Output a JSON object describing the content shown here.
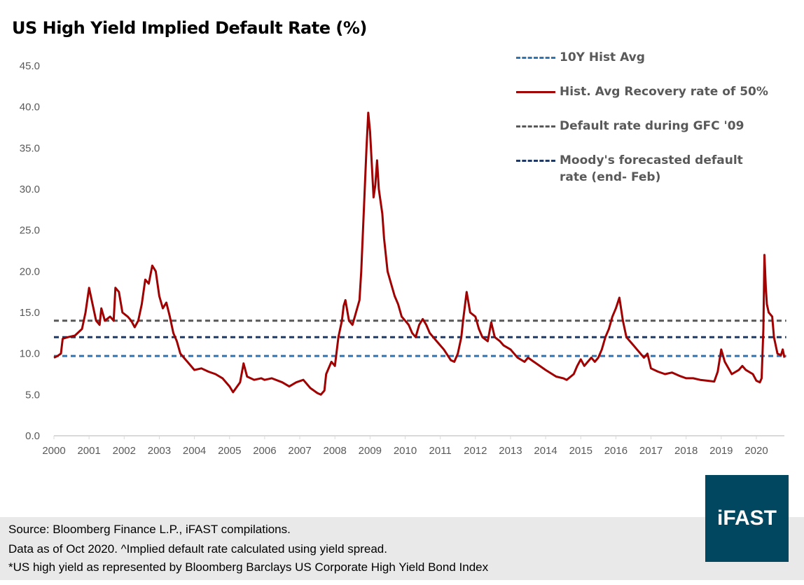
{
  "chart_data": {
    "type": "line",
    "title": "US High Yield Implied Default Rate (%)",
    "xlabel": "",
    "ylabel": "",
    "ylim": [
      0,
      45
    ],
    "xlim": [
      2000,
      2020.85
    ],
    "y_ticks": [
      "0.0",
      "5.0",
      "10.0",
      "15.0",
      "20.0",
      "25.0",
      "30.0",
      "35.0",
      "40.0",
      "45.0"
    ],
    "x_ticks": [
      "2000",
      "2001",
      "2002",
      "2003",
      "2004",
      "2005",
      "2006",
      "2007",
      "2008",
      "2009",
      "2010",
      "2011",
      "2012",
      "2013",
      "2014",
      "2015",
      "2016",
      "2017",
      "2018",
      "2019",
      "2020"
    ],
    "grid": false,
    "legend_placement": "top-right",
    "series": [
      {
        "name": "Hist. Avg Recovery rate of 50%",
        "color": "#a00000",
        "style": "solid",
        "x": [
          2000.0,
          2000.1,
          2000.2,
          2000.25,
          2000.4,
          2000.6,
          2000.8,
          2000.9,
          2001.0,
          2001.1,
          2001.2,
          2001.3,
          2001.35,
          2001.45,
          2001.6,
          2001.7,
          2001.75,
          2001.85,
          2001.95,
          2002.1,
          2002.2,
          2002.3,
          2002.4,
          2002.5,
          2002.6,
          2002.7,
          2002.8,
          2002.9,
          2003.0,
          2003.1,
          2003.2,
          2003.3,
          2003.4,
          2003.5,
          2003.6,
          2003.8,
          2004.0,
          2004.2,
          2004.4,
          2004.6,
          2004.8,
          2005.0,
          2005.1,
          2005.3,
          2005.4,
          2005.5,
          2005.7,
          2005.9,
          2006.0,
          2006.2,
          2006.5,
          2006.7,
          2006.9,
          2007.1,
          2007.3,
          2007.5,
          2007.6,
          2007.7,
          2007.75,
          2007.9,
          2008.0,
          2008.1,
          2008.2,
          2008.25,
          2008.3,
          2008.4,
          2008.5,
          2008.6,
          2008.7,
          2008.75,
          2008.8,
          2008.85,
          2008.9,
          2008.95,
          2009.0,
          2009.05,
          2009.1,
          2009.15,
          2009.2,
          2009.25,
          2009.35,
          2009.4,
          2009.5,
          2009.6,
          2009.7,
          2009.8,
          2009.9,
          2010.0,
          2010.1,
          2010.2,
          2010.3,
          2010.4,
          2010.5,
          2010.6,
          2010.7,
          2010.9,
          2011.1,
          2011.3,
          2011.4,
          2011.5,
          2011.6,
          2011.65,
          2011.75,
          2011.85,
          2012.0,
          2012.1,
          2012.2,
          2012.35,
          2012.45,
          2012.55,
          2012.7,
          2012.8,
          2013.0,
          2013.2,
          2013.4,
          2013.5,
          2013.6,
          2013.8,
          2014.0,
          2014.3,
          2014.5,
          2014.6,
          2014.8,
          2014.9,
          2015.0,
          2015.1,
          2015.2,
          2015.3,
          2015.4,
          2015.5,
          2015.6,
          2015.7,
          2015.8,
          2015.9,
          2016.0,
          2016.1,
          2016.2,
          2016.3,
          2016.4,
          2016.5,
          2016.6,
          2016.8,
          2016.9,
          2017.0,
          2017.2,
          2017.4,
          2017.6,
          2017.8,
          2018.0,
          2018.2,
          2018.4,
          2018.6,
          2018.8,
          2018.9,
          2019.0,
          2019.1,
          2019.3,
          2019.5,
          2019.6,
          2019.7,
          2019.9,
          2020.0,
          2020.1,
          2020.15,
          2020.2,
          2020.23,
          2020.27,
          2020.3,
          2020.35,
          2020.45,
          2020.5,
          2020.55,
          2020.6,
          2020.7,
          2020.75,
          2020.8
        ],
        "values": [
          9.5,
          9.7,
          10,
          11.8,
          12,
          12.2,
          13,
          15,
          18,
          16,
          14,
          13.5,
          15.5,
          14,
          14.5,
          14,
          18,
          17.5,
          15,
          14.5,
          14,
          13.2,
          14,
          16,
          19,
          18.5,
          20.7,
          20,
          17,
          15.5,
          16.2,
          14.5,
          12.5,
          11.5,
          10,
          9,
          8,
          8.2,
          7.8,
          7.5,
          7,
          6,
          5.3,
          6.5,
          8.8,
          7.2,
          6.8,
          7,
          6.8,
          7,
          6.5,
          6,
          6.5,
          6.8,
          5.8,
          5.2,
          5.0,
          5.5,
          7.5,
          9,
          8.5,
          12,
          14,
          15.8,
          16.5,
          14,
          13.5,
          15,
          16.5,
          20,
          25,
          30,
          35,
          39.3,
          37,
          33,
          29,
          30.5,
          33.5,
          30,
          27,
          24,
          20,
          18.5,
          17,
          16,
          14.5,
          14,
          13.5,
          12.5,
          12,
          13.5,
          14.2,
          13.5,
          12.5,
          11.5,
          10.5,
          9.2,
          9,
          10,
          12,
          14,
          17.5,
          15,
          14.5,
          13,
          12,
          11.5,
          13.8,
          12,
          11.5,
          11,
          10.5,
          9.5,
          9,
          9.5,
          9.2,
          8.6,
          8,
          7.2,
          7,
          6.8,
          7.5,
          8.5,
          9.3,
          8.5,
          9,
          9.5,
          9,
          9.5,
          10.5,
          12,
          13,
          14.5,
          15.5,
          16.8,
          14,
          12,
          11.5,
          11,
          10.5,
          9.5,
          10,
          8.2,
          7.8,
          7.5,
          7.7,
          7.3,
          7.0,
          7.0,
          6.8,
          6.7,
          6.6,
          7.8,
          10.5,
          9,
          7.5,
          8,
          8.5,
          8,
          7.5,
          6.7,
          6.5,
          7,
          13,
          22,
          18,
          16,
          15,
          14.5,
          12,
          11,
          10,
          9.8,
          10.5,
          9.5
        ]
      },
      {
        "name": "10Y Hist Avg",
        "color": "#2e75b6",
        "style": "dashed",
        "value": 9.7
      },
      {
        "name": "Default rate during GFC '09",
        "color": "#595959",
        "style": "dashed",
        "value": 14.0
      },
      {
        "name": "Moody's forecasted default rate (end- Feb)",
        "color": "#1f3864",
        "style": "dashed",
        "value": 12.0
      }
    ]
  },
  "legend": [
    {
      "label": "10Y Hist Avg",
      "color": "#2e75b6",
      "style": "dashed"
    },
    {
      "label": "Hist. Avg Recovery rate of 50%",
      "color": "#a00000",
      "style": "solid"
    },
    {
      "label": "Default rate during GFC '09",
      "color": "#595959",
      "style": "dashed"
    },
    {
      "label": "Moody's forecasted default rate (end- Feb)",
      "color": "#1f3864",
      "style": "dashed"
    }
  ],
  "footer": {
    "line1": "Source: Bloomberg Finance L.P., iFAST compilations.",
    "line2": "Data as of Oct 2020. ^Implied default rate calculated using yield spread.",
    "line3": "*US high yield as represented by Bloomberg Barclays US Corporate High Yield Bond Index"
  },
  "logo": {
    "text": "iFAST",
    "color": "#00475f"
  }
}
